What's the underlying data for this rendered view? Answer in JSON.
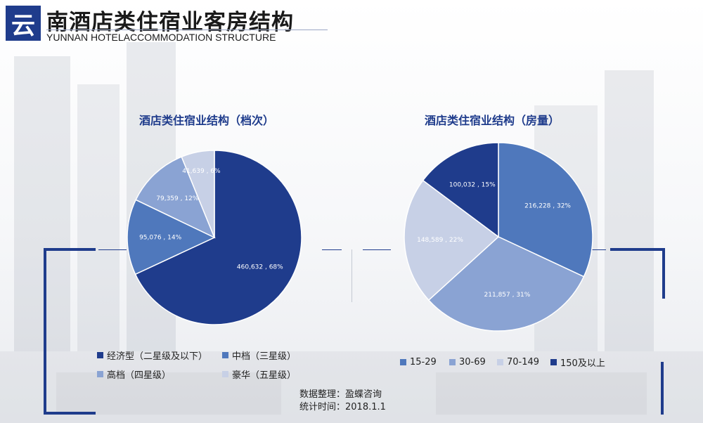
{
  "header": {
    "logo_char": "云",
    "title": "南酒店类住宿业客房结构",
    "subtitle": "YUNNAN HOTELACCOMMODATION STRUCTURE"
  },
  "colors": {
    "brand": "#1f3c8c"
  },
  "chart_data": [
    {
      "type": "pie",
      "title": "酒店类住宿业结构（档次）",
      "slices": [
        {
          "label": "经济型（二星级及以下）",
          "value": 460632,
          "percent": 68,
          "data_label": "460,632 , 68%",
          "color": "#1f3c8c",
          "text_color": "#ffffff"
        },
        {
          "label": "中档（三星级）",
          "value": 95076,
          "percent": 14,
          "data_label": "95,076 , 14%",
          "color": "#4f78bc",
          "text_color": "#ffffff"
        },
        {
          "label": "高档（四星级）",
          "value": 79359,
          "percent": 12,
          "data_label": "79,359 , 12%",
          "color": "#8aa3d3",
          "text_color": "#ffffff"
        },
        {
          "label": "豪华（五星级）",
          "value": 41639,
          "percent": 6,
          "data_label": "41,639 , 6%",
          "color": "#c7d0e6",
          "text_color": "#ffffff"
        }
      ],
      "legend_position": "bottom"
    },
    {
      "type": "pie",
      "title": "酒店类住宿业结构（房量）",
      "slices": [
        {
          "label": "15-29",
          "value": 216228,
          "percent": 32,
          "data_label": "216,228 , 32%",
          "color": "#4f78bc",
          "text_color": "#ffffff"
        },
        {
          "label": "30-69",
          "value": 211857,
          "percent": 31,
          "data_label": "211,857 , 31%",
          "color": "#8aa3d3",
          "text_color": "#ffffff"
        },
        {
          "label": "70-149",
          "value": 148589,
          "percent": 22,
          "data_label": "148,589 , 22%",
          "color": "#c7d0e6",
          "text_color": "#ffffff"
        },
        {
          "label": "150及以上",
          "value": 100032,
          "percent": 15,
          "data_label": "100,032 , 15%",
          "color": "#1f3c8c",
          "text_color": "#ffffff"
        }
      ],
      "legend_position": "bottom"
    }
  ],
  "source": {
    "line1": "数据整理：盈蝶咨询",
    "line2": "统计时间：2018.1.1"
  }
}
